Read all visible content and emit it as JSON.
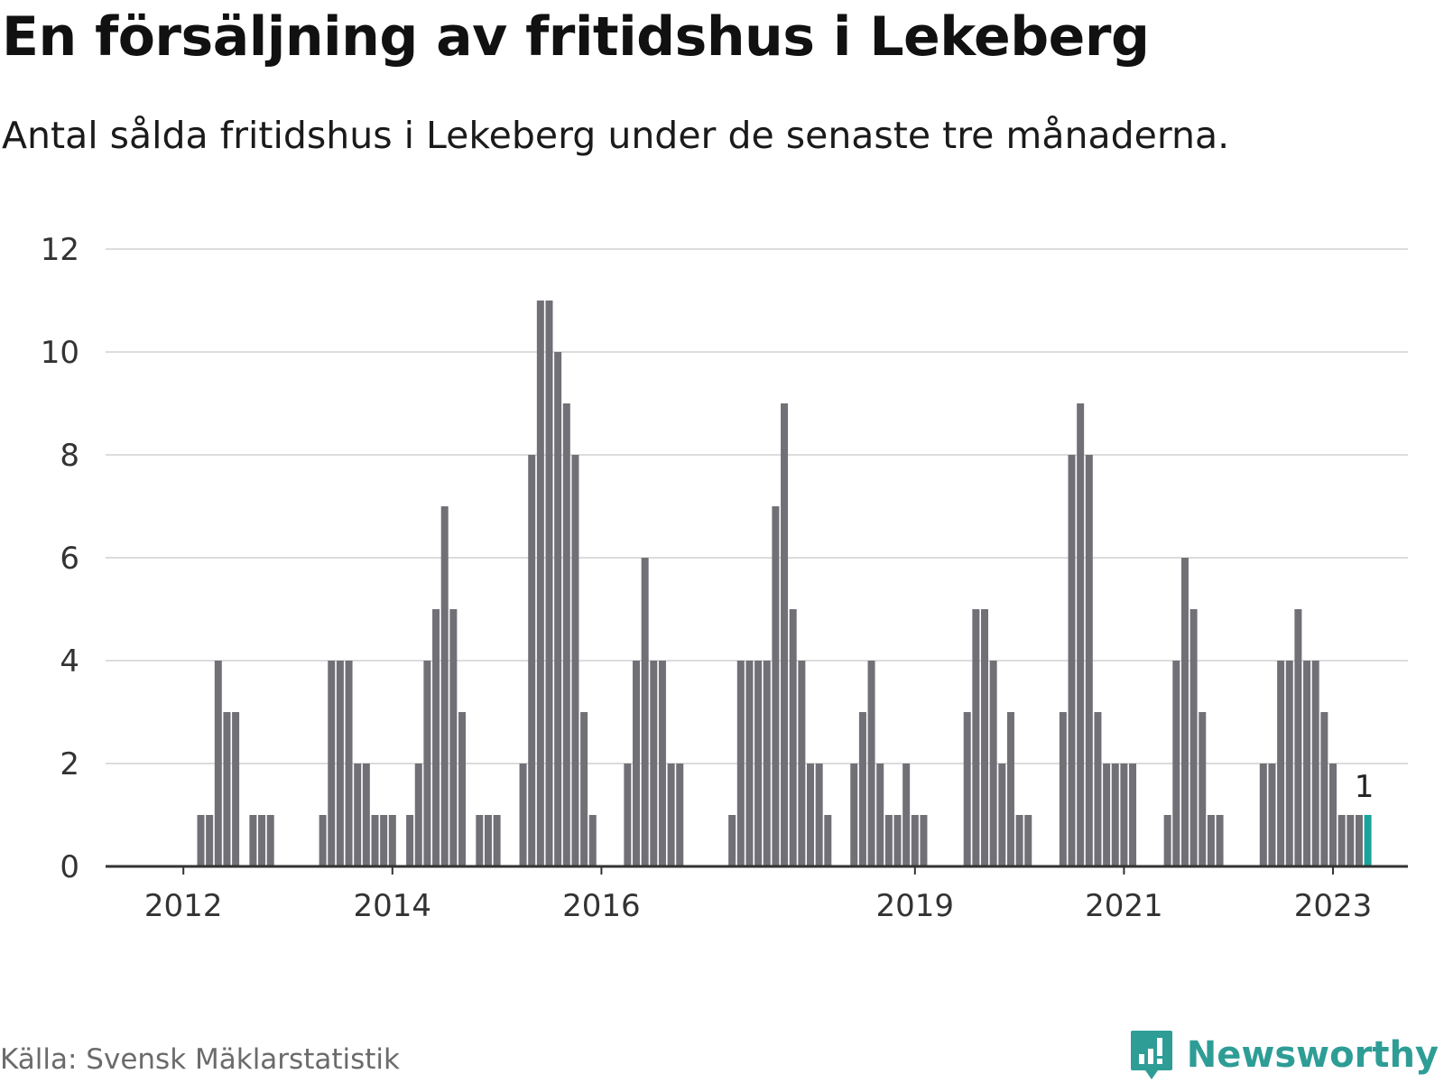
{
  "title": "En försäljning av fritidshus i Lekeberg",
  "subtitle": "Antal sålda fritidshus i Lekeberg under de senaste tre månaderna.",
  "source": "Källa: Svensk Mäklarstatistik",
  "brand": {
    "name": "Newsworthy",
    "icon": "newsworthy-logo-icon",
    "color": "#2e9d96"
  },
  "chart_data": {
    "type": "bar",
    "x_start": "2011-05",
    "x_end": "2023-05",
    "ylim": [
      0,
      12
    ],
    "y_ticks": [
      0,
      2,
      4,
      6,
      8,
      10,
      12
    ],
    "x_ticks": [
      "2012",
      "2014",
      "2016",
      "2019",
      "2021",
      "2023"
    ],
    "grid": true,
    "bar_color": "#707076",
    "highlight_color": "#1aa39a",
    "highlight_label": "1",
    "bars": [
      {
        "x": "2012-03",
        "y": 1
      },
      {
        "x": "2012-04",
        "y": 1
      },
      {
        "x": "2012-05",
        "y": 4
      },
      {
        "x": "2012-06",
        "y": 3
      },
      {
        "x": "2012-07",
        "y": 3
      },
      {
        "x": "2012-09",
        "y": 1
      },
      {
        "x": "2012-10",
        "y": 1
      },
      {
        "x": "2012-11",
        "y": 1
      },
      {
        "x": "2013-05",
        "y": 1
      },
      {
        "x": "2013-06",
        "y": 4
      },
      {
        "x": "2013-07",
        "y": 4
      },
      {
        "x": "2013-08",
        "y": 4
      },
      {
        "x": "2013-09",
        "y": 2
      },
      {
        "x": "2013-10",
        "y": 2
      },
      {
        "x": "2013-11",
        "y": 1
      },
      {
        "x": "2013-12",
        "y": 1
      },
      {
        "x": "2014-01",
        "y": 1
      },
      {
        "x": "2014-03",
        "y": 1
      },
      {
        "x": "2014-04",
        "y": 2
      },
      {
        "x": "2014-05",
        "y": 4
      },
      {
        "x": "2014-06",
        "y": 5
      },
      {
        "x": "2014-07",
        "y": 7
      },
      {
        "x": "2014-08",
        "y": 5
      },
      {
        "x": "2014-09",
        "y": 3
      },
      {
        "x": "2014-11",
        "y": 1
      },
      {
        "x": "2014-12",
        "y": 1
      },
      {
        "x": "2015-01",
        "y": 1
      },
      {
        "x": "2015-04",
        "y": 2
      },
      {
        "x": "2015-05",
        "y": 8
      },
      {
        "x": "2015-06",
        "y": 11
      },
      {
        "x": "2015-07",
        "y": 11
      },
      {
        "x": "2015-08",
        "y": 10
      },
      {
        "x": "2015-09",
        "y": 9
      },
      {
        "x": "2015-10",
        "y": 8
      },
      {
        "x": "2015-11",
        "y": 3
      },
      {
        "x": "2015-12",
        "y": 1
      },
      {
        "x": "2016-04",
        "y": 2
      },
      {
        "x": "2016-05",
        "y": 4
      },
      {
        "x": "2016-06",
        "y": 6
      },
      {
        "x": "2016-07",
        "y": 4
      },
      {
        "x": "2016-08",
        "y": 4
      },
      {
        "x": "2016-09",
        "y": 2
      },
      {
        "x": "2016-10",
        "y": 2
      },
      {
        "x": "2017-04",
        "y": 1
      },
      {
        "x": "2017-05",
        "y": 4
      },
      {
        "x": "2017-06",
        "y": 4
      },
      {
        "x": "2017-07",
        "y": 4
      },
      {
        "x": "2017-08",
        "y": 4
      },
      {
        "x": "2017-09",
        "y": 7
      },
      {
        "x": "2017-10",
        "y": 9
      },
      {
        "x": "2017-11",
        "y": 5
      },
      {
        "x": "2017-12",
        "y": 4
      },
      {
        "x": "2018-01",
        "y": 2
      },
      {
        "x": "2018-02",
        "y": 2
      },
      {
        "x": "2018-03",
        "y": 1
      },
      {
        "x": "2018-06",
        "y": 2
      },
      {
        "x": "2018-07",
        "y": 3
      },
      {
        "x": "2018-08",
        "y": 4
      },
      {
        "x": "2018-09",
        "y": 2
      },
      {
        "x": "2018-10",
        "y": 1
      },
      {
        "x": "2018-11",
        "y": 1
      },
      {
        "x": "2018-12",
        "y": 2
      },
      {
        "x": "2019-01",
        "y": 1
      },
      {
        "x": "2019-02",
        "y": 1
      },
      {
        "x": "2019-07",
        "y": 3
      },
      {
        "x": "2019-08",
        "y": 5
      },
      {
        "x": "2019-09",
        "y": 5
      },
      {
        "x": "2019-10",
        "y": 4
      },
      {
        "x": "2019-11",
        "y": 2
      },
      {
        "x": "2019-12",
        "y": 3
      },
      {
        "x": "2020-01",
        "y": 1
      },
      {
        "x": "2020-02",
        "y": 1
      },
      {
        "x": "2020-06",
        "y": 3
      },
      {
        "x": "2020-07",
        "y": 8
      },
      {
        "x": "2020-08",
        "y": 9
      },
      {
        "x": "2020-09",
        "y": 8
      },
      {
        "x": "2020-10",
        "y": 3
      },
      {
        "x": "2020-11",
        "y": 2
      },
      {
        "x": "2020-12",
        "y": 2
      },
      {
        "x": "2021-01",
        "y": 2
      },
      {
        "x": "2021-02",
        "y": 2
      },
      {
        "x": "2021-06",
        "y": 1
      },
      {
        "x": "2021-07",
        "y": 4
      },
      {
        "x": "2021-08",
        "y": 6
      },
      {
        "x": "2021-09",
        "y": 5
      },
      {
        "x": "2021-10",
        "y": 3
      },
      {
        "x": "2021-11",
        "y": 1
      },
      {
        "x": "2021-12",
        "y": 1
      },
      {
        "x": "2022-05",
        "y": 2
      },
      {
        "x": "2022-06",
        "y": 2
      },
      {
        "x": "2022-07",
        "y": 4
      },
      {
        "x": "2022-08",
        "y": 4
      },
      {
        "x": "2022-09",
        "y": 5
      },
      {
        "x": "2022-10",
        "y": 4
      },
      {
        "x": "2022-11",
        "y": 4
      },
      {
        "x": "2022-12",
        "y": 3
      },
      {
        "x": "2023-01",
        "y": 2
      },
      {
        "x": "2023-02",
        "y": 1
      },
      {
        "x": "2023-03",
        "y": 1
      },
      {
        "x": "2023-04",
        "y": 1
      },
      {
        "x": "2023-05",
        "y": 1,
        "highlight": true
      }
    ]
  }
}
